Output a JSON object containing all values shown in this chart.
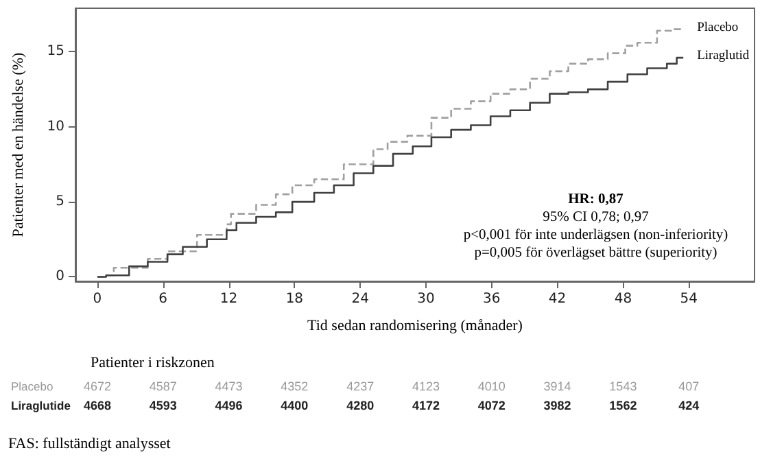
{
  "chart_data": {
    "type": "step",
    "xlabel": "Tid sedan randomisering (månader)",
    "ylabel": "Patienter med en händelse (%)",
    "xlim": [
      -2,
      60
    ],
    "xticks": [
      0,
      6,
      12,
      18,
      24,
      30,
      36,
      42,
      48,
      54
    ],
    "ylim": [
      -0.3,
      17.9
    ],
    "yticks": [
      0,
      5,
      10,
      15
    ],
    "grid": false,
    "legend": false,
    "marker": "none",
    "series": [
      {
        "name": "Placebo",
        "color": "#a0a0a0",
        "line_style": "dashed",
        "x": [
          0,
          0.6,
          1.5,
          4.6,
          6.4,
          9.1,
          11.8,
          12.2,
          14.5,
          16.3,
          17.8,
          19.8,
          22.5,
          25.2,
          26.5,
          28.3,
          30.5,
          32.3,
          34.1,
          35.9,
          37.7,
          39.5,
          41.3,
          43.0,
          44.8,
          46.6,
          48.2,
          49.3,
          51.1,
          52.4,
          53.5
        ],
        "values": [
          0,
          0.1,
          0.6,
          1.2,
          1.7,
          2.8,
          3.5,
          4.2,
          4.8,
          5.5,
          6.1,
          6.5,
          7.5,
          8.5,
          9.0,
          9.4,
          10.6,
          11.2,
          11.7,
          12.2,
          12.5,
          13.2,
          13.7,
          14.2,
          14.5,
          14.9,
          15.4,
          15.6,
          16.4,
          16.5,
          16.5
        ]
      },
      {
        "name": "Liraglutid",
        "color": "#404040",
        "line_style": "solid",
        "x": [
          0,
          0.8,
          2.9,
          4.6,
          6.4,
          7.8,
          10,
          11.8,
          12.7,
          14.5,
          16.3,
          17.8,
          19.8,
          21.6,
          23.4,
          25.2,
          27.0,
          28.8,
          30.5,
          32.3,
          34.1,
          35.9,
          37.7,
          39.5,
          41.3,
          43.0,
          44.8,
          46.6,
          48.4,
          50.2,
          52.0,
          52.9,
          53.5
        ],
        "values": [
          0,
          0.1,
          0.7,
          1.0,
          1.5,
          2.0,
          2.5,
          3.1,
          3.6,
          4.0,
          4.3,
          5.0,
          5.6,
          6.1,
          6.9,
          7.4,
          8.2,
          8.7,
          9.3,
          9.8,
          10.1,
          10.7,
          11.1,
          11.6,
          12.2,
          12.3,
          12.5,
          13.0,
          13.5,
          13.9,
          14.2,
          14.6,
          14.6
        ]
      }
    ],
    "annotations": [
      "HR: 0,87",
      "95% CI 0,78; 0,97",
      "p<0,001 för inte underlägsen (non-inferiority)",
      "p=0,005 för överlägset bättre (superiority)",
      "Patienter i riskzonen",
      "Placebo 4672 4587 4473 4352 4237 4123 4010 3914 1543 407",
      "Liraglutide 4668 4593 4496 4400 4280 4172 4072 3982 1562 424",
      "FAS: fullständigt analysset"
    ]
  }
}
